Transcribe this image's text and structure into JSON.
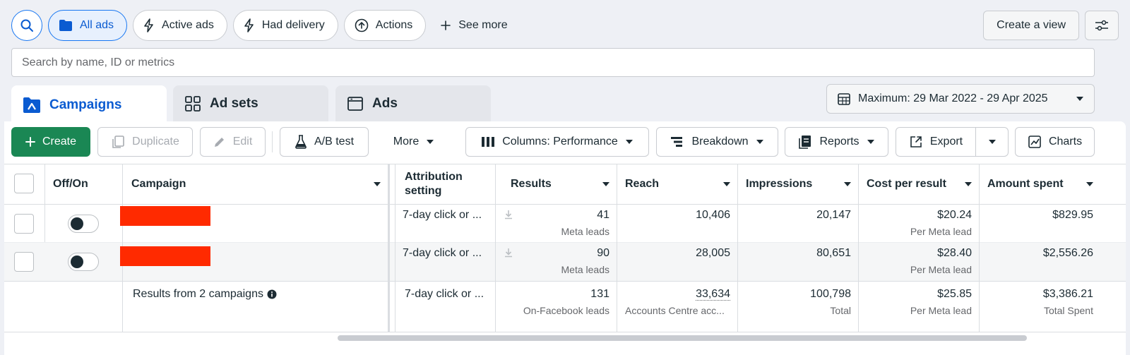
{
  "filters": {
    "all_ads": "All ads",
    "active_ads": "Active ads",
    "had_delivery": "Had delivery",
    "actions": "Actions",
    "see_more": "See more",
    "create_view": "Create a view"
  },
  "search": {
    "placeholder": "Search by name, ID or metrics"
  },
  "tabs": {
    "campaigns": "Campaigns",
    "ad_sets": "Ad sets",
    "ads": "Ads"
  },
  "date_range": "Maximum: 29 Mar 2022 - 29 Apr 2025",
  "toolbar": {
    "create": "Create",
    "duplicate": "Duplicate",
    "edit": "Edit",
    "ab_test": "A/B test",
    "more": "More",
    "columns": "Columns: Performance",
    "breakdown": "Breakdown",
    "reports": "Reports",
    "export": "Export",
    "charts": "Charts"
  },
  "columns": {
    "offon": "Off/On",
    "campaign": "Campaign",
    "attribution": "Attribution setting",
    "results": "Results",
    "reach": "Reach",
    "impressions": "Impressions",
    "cost_per_result": "Cost per result",
    "amount_spent": "Amount spent"
  },
  "rows": [
    {
      "attribution": "7-day click or ...",
      "results": "41",
      "results_sub": "Meta leads",
      "reach": "10,406",
      "impressions": "20,147",
      "cost": "$20.24",
      "cost_sub": "Per Meta lead",
      "spent": "$829.95"
    },
    {
      "attribution": "7-day click or ...",
      "results": "90",
      "results_sub": "Meta leads",
      "reach": "28,005",
      "impressions": "80,651",
      "cost": "$28.40",
      "cost_sub": "Per Meta lead",
      "spent": "$2,556.26"
    }
  ],
  "summary": {
    "label": "Results from 2 campaigns",
    "attribution": "7-day click or ...",
    "results": "131",
    "results_sub": "On-Facebook leads",
    "reach": "33,634",
    "reach_sub": "Accounts Centre acc...",
    "impressions": "100,798",
    "impressions_sub": "Total",
    "cost": "$25.85",
    "cost_sub": "Per Meta lead",
    "spent": "$3,386.21",
    "spent_sub": "Total Spent"
  },
  "colors": {
    "primary_green": "#1a8754",
    "accent_blue": "#0a5bd1",
    "redaction": "#ff2a00"
  }
}
